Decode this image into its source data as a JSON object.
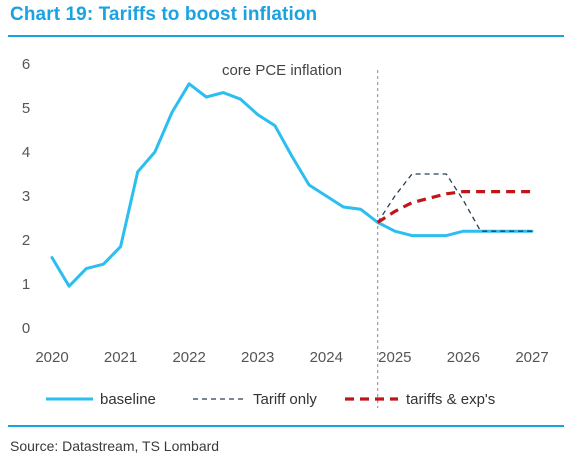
{
  "header": {
    "title": "Chart 19: Tariffs to boost inflation"
  },
  "footer": {
    "source": "Source: Datastream, TS Lombard"
  },
  "colors": {
    "accent": "#1aa3e0",
    "baseline": "#2bbef0",
    "tariff_only": "#2a3d55",
    "tariffs_exp": "#c0161a"
  },
  "chart_data": {
    "type": "line",
    "title": "",
    "xlabel": "",
    "ylabel": "",
    "annotation": "core PCE inflation",
    "annotation_x": 2024.75,
    "xlim": [
      2020,
      2027
    ],
    "ylim": [
      0,
      6
    ],
    "xticks": [
      "2020",
      "2021",
      "2022",
      "2023",
      "2024",
      "2025",
      "2026",
      "2027"
    ],
    "yticks": [
      "0",
      "1",
      "2",
      "3",
      "4",
      "5",
      "6"
    ],
    "grid": false,
    "legend_position": "bottom",
    "series": [
      {
        "name": "baseline",
        "style": "solid",
        "x": [
          2020.0,
          2020.25,
          2020.5,
          2020.75,
          2021.0,
          2021.25,
          2021.5,
          2021.75,
          2022.0,
          2022.25,
          2022.5,
          2022.75,
          2023.0,
          2023.25,
          2023.5,
          2023.75,
          2024.0,
          2024.25,
          2024.5,
          2024.75,
          2025.0,
          2025.25,
          2025.5,
          2025.75,
          2026.0,
          2026.25,
          2026.5,
          2026.75,
          2027.0
        ],
        "values": [
          1.6,
          0.95,
          1.35,
          1.45,
          1.85,
          3.55,
          4.0,
          4.9,
          5.55,
          5.25,
          5.35,
          5.2,
          4.85,
          4.6,
          3.9,
          3.25,
          3.0,
          2.75,
          2.7,
          2.4,
          2.2,
          2.1,
          2.1,
          2.1,
          2.2,
          2.2,
          2.2,
          2.2,
          2.2
        ]
      },
      {
        "name": "Tariff only",
        "style": "dashed",
        "x": [
          2024.75,
          2025.0,
          2025.25,
          2025.5,
          2025.75,
          2026.0,
          2026.25,
          2026.5,
          2026.75,
          2027.0
        ],
        "values": [
          2.4,
          3.0,
          3.5,
          3.5,
          3.5,
          2.9,
          2.2,
          2.2,
          2.2,
          2.2
        ]
      },
      {
        "name": "tariffs & exp's",
        "style": "dashed-thick",
        "x": [
          2024.75,
          2025.0,
          2025.25,
          2025.5,
          2025.75,
          2026.0,
          2026.25,
          2026.5,
          2026.75,
          2027.0
        ],
        "values": [
          2.4,
          2.65,
          2.85,
          2.95,
          3.05,
          3.1,
          3.1,
          3.1,
          3.1,
          3.1
        ]
      }
    ]
  }
}
